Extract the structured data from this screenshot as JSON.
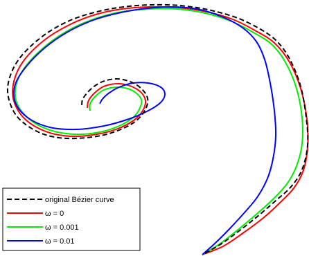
{
  "chart_data": {
    "type": "line",
    "title": "",
    "xlabel": "",
    "ylabel": "",
    "axes_visible": false,
    "grid": false,
    "legend_position": "bottom-left",
    "series": [
      {
        "name": "original Bézier curve",
        "color": "#000000",
        "style": "dashed",
        "points": [
          [
            296,
            366
          ],
          [
            320,
            352
          ],
          [
            350,
            330
          ],
          [
            375,
            310
          ],
          [
            398,
            290
          ],
          [
            420,
            270
          ],
          [
            436,
            245
          ],
          [
            444,
            210
          ],
          [
            442,
            170
          ],
          [
            434,
            125
          ],
          [
            418,
            85
          ],
          [
            398,
            58
          ],
          [
            372,
            40
          ],
          [
            340,
            25
          ],
          [
            300,
            14
          ],
          [
            260,
            8
          ],
          [
            218,
            7
          ],
          [
            178,
            10
          ],
          [
            140,
            17
          ],
          [
            100,
            30
          ],
          [
            62,
            52
          ],
          [
            30,
            82
          ],
          [
            14,
            112
          ],
          [
            12,
            140
          ],
          [
            26,
            170
          ],
          [
            58,
            192
          ],
          [
            96,
            200
          ],
          [
            140,
            197
          ],
          [
            172,
            188
          ],
          [
            196,
            175
          ],
          [
            210,
            158
          ],
          [
            213,
            142
          ],
          [
            204,
            128
          ],
          [
            188,
            118
          ],
          [
            168,
            114
          ],
          [
            148,
            118
          ],
          [
            132,
            128
          ],
          [
            120,
            142
          ],
          [
            118,
            152
          ]
        ]
      },
      {
        "name": "ω = 0",
        "color": "#ff0000",
        "style": "solid",
        "points": [
          [
            292,
            368
          ],
          [
            322,
            356
          ],
          [
            352,
            336
          ],
          [
            380,
            315
          ],
          [
            402,
            295
          ],
          [
            424,
            272
          ],
          [
            438,
            246
          ],
          [
            444,
            212
          ],
          [
            443,
            172
          ],
          [
            434,
            128
          ],
          [
            418,
            90
          ],
          [
            396,
            62
          ],
          [
            368,
            44
          ],
          [
            336,
            28
          ],
          [
            298,
            17
          ],
          [
            258,
            11
          ],
          [
            216,
            10
          ],
          [
            176,
            13
          ],
          [
            138,
            21
          ],
          [
            100,
            36
          ],
          [
            64,
            58
          ],
          [
            34,
            88
          ],
          [
            20,
            118
          ],
          [
            20,
            146
          ],
          [
            36,
            172
          ],
          [
            66,
            190
          ],
          [
            102,
            197
          ],
          [
            140,
            194
          ],
          [
            170,
            186
          ],
          [
            193,
            174
          ],
          [
            206,
            160
          ],
          [
            210,
            146
          ],
          [
            204,
            134
          ],
          [
            190,
            125
          ],
          [
            172,
            121
          ],
          [
            152,
            124
          ],
          [
            138,
            133
          ],
          [
            128,
            145
          ],
          [
            126,
            156
          ]
        ]
      },
      {
        "name": "ω = 0.001",
        "color": "#00ee00",
        "style": "solid",
        "points": [
          [
            292,
            368
          ],
          [
            318,
            352
          ],
          [
            346,
            330
          ],
          [
            372,
            308
          ],
          [
            394,
            288
          ],
          [
            414,
            266
          ],
          [
            428,
            240
          ],
          [
            436,
            208
          ],
          [
            436,
            170
          ],
          [
            428,
            128
          ],
          [
            412,
            90
          ],
          [
            392,
            64
          ],
          [
            364,
            46
          ],
          [
            332,
            30
          ],
          [
            296,
            19
          ],
          [
            256,
            13
          ],
          [
            216,
            13
          ],
          [
            176,
            17
          ],
          [
            140,
            26
          ],
          [
            104,
            41
          ],
          [
            70,
            63
          ],
          [
            40,
            92
          ],
          [
            24,
            120
          ],
          [
            24,
            148
          ],
          [
            42,
            172
          ],
          [
            72,
            188
          ],
          [
            108,
            194
          ],
          [
            144,
            191
          ],
          [
            172,
            182
          ],
          [
            192,
            170
          ],
          [
            202,
            156
          ],
          [
            204,
            144
          ],
          [
            196,
            134
          ],
          [
            184,
            128
          ],
          [
            168,
            126
          ],
          [
            150,
            130
          ],
          [
            138,
            139
          ],
          [
            130,
            150
          ],
          [
            130,
            160
          ]
        ]
      },
      {
        "name": "ω = 0.01",
        "color": "#0000ff",
        "style": "solid",
        "points": [
          [
            292,
            368
          ],
          [
            310,
            352
          ],
          [
            332,
            330
          ],
          [
            354,
            306
          ],
          [
            372,
            284
          ],
          [
            386,
            258
          ],
          [
            394,
            230
          ],
          [
            398,
            196
          ],
          [
            396,
            160
          ],
          [
            390,
            120
          ],
          [
            382,
            86
          ],
          [
            370,
            60
          ],
          [
            350,
            40
          ],
          [
            320,
            24
          ],
          [
            284,
            13
          ],
          [
            244,
            10
          ],
          [
            204,
            13
          ],
          [
            166,
            20
          ],
          [
            132,
            30
          ],
          [
            98,
            46
          ],
          [
            66,
            68
          ],
          [
            38,
            96
          ],
          [
            22,
            122
          ],
          [
            22,
            148
          ],
          [
            40,
            170
          ],
          [
            72,
            184
          ],
          [
            110,
            187
          ],
          [
            150,
            182
          ],
          [
            186,
            172
          ],
          [
            214,
            160
          ],
          [
            232,
            148
          ],
          [
            238,
            136
          ],
          [
            232,
            126
          ],
          [
            214,
            120
          ],
          [
            192,
            120
          ],
          [
            172,
            126
          ],
          [
            158,
            134
          ],
          [
            148,
            143
          ],
          [
            144,
            150
          ]
        ]
      }
    ],
    "legend": {
      "entries": [
        "original Bézier curve",
        "ω = 0",
        "ω = 0.001",
        "ω = 0.01"
      ]
    }
  }
}
